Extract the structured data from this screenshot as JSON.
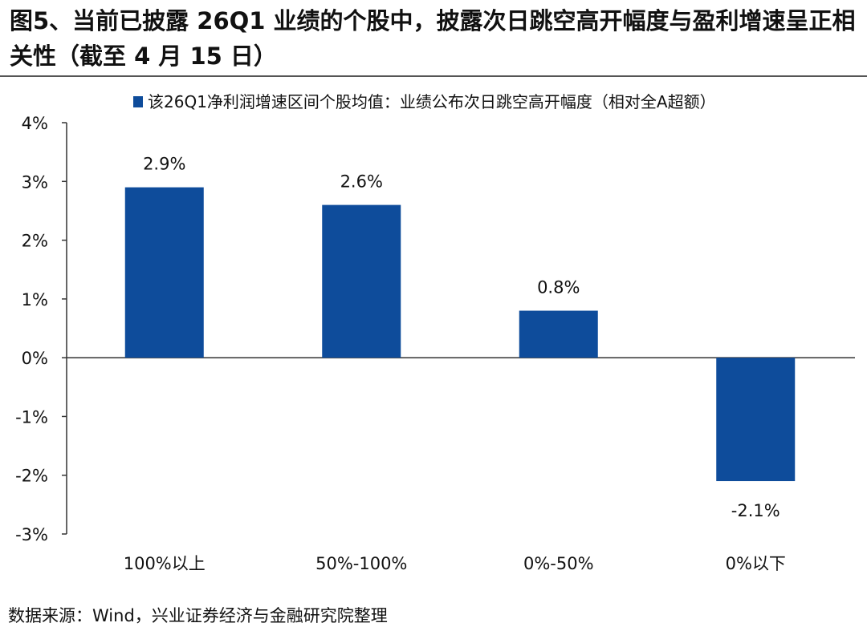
{
  "title": "图5、当前已披露 26Q1 业绩的个股中，披露次日跳空高开幅度与盈利增速呈正相关性（截至 4 月 15 日）",
  "source": "数据来源：Wind，兴业证券经济与金融研究院整理",
  "chart_data": {
    "type": "bar",
    "categories": [
      "100%以上",
      "50%-100%",
      "0%-50%",
      "0%以下"
    ],
    "series": [
      {
        "name": "该26Q1净利润增速区间个股均值：业绩公布次日跳空高开幅度（相对全A超额）",
        "values": [
          2.9,
          2.6,
          0.8,
          -2.1
        ],
        "labels": [
          "2.9%",
          "2.6%",
          "0.8%",
          "-2.1%"
        ],
        "color": "#0E4C9B"
      }
    ],
    "ylim": [
      -3,
      4
    ],
    "yticks": [
      "4%",
      "3%",
      "2%",
      "1%",
      "0%",
      "-1%",
      "-2%",
      "-3%"
    ],
    "legend": "top",
    "grid": false
  }
}
